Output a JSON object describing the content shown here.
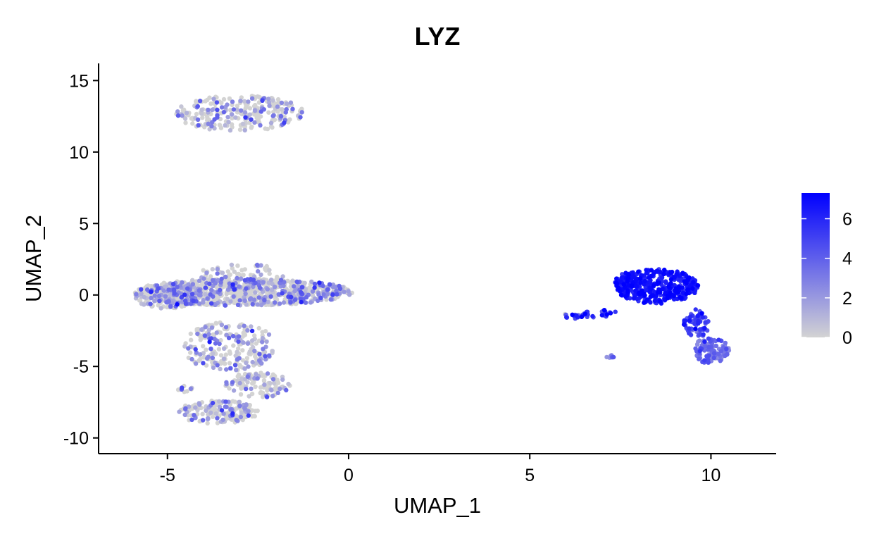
{
  "chart_data": {
    "type": "scatter",
    "title": "LYZ",
    "xlabel": "UMAP_1",
    "ylabel": "UMAP_2",
    "xlim": [
      -6.9,
      11.8
    ],
    "ylim": [
      -11.1,
      16.2
    ],
    "xticks": [
      -5,
      0,
      5,
      10
    ],
    "xtick_labels": [
      "-5",
      "0",
      "5",
      "10"
    ],
    "yticks": [
      -10,
      -5,
      0,
      5,
      10,
      15
    ],
    "ytick_labels": [
      "-10",
      "-5",
      "0",
      "5",
      "10",
      "15"
    ],
    "grid": false,
    "legend": {
      "position": "right",
      "type": "colorbar",
      "min": 0,
      "max": 7.3,
      "ticks": [
        0,
        2,
        4,
        6
      ],
      "tick_labels": [
        "0",
        "2",
        "4",
        "6"
      ],
      "low_color": "#d3d3d3",
      "high_color": "#0000ff"
    },
    "clusters": [
      {
        "name": "top-cluster",
        "shape": "ellipse",
        "cx": -3.0,
        "cy": 12.7,
        "rx": 1.8,
        "ry": 1.25,
        "count": 260,
        "expr_mean": 1.0,
        "expr_sd": 1.0
      },
      {
        "name": "mid-band",
        "shape": "ellipse",
        "cx": -2.9,
        "cy": 0.2,
        "rx": 3.0,
        "ry": 0.95,
        "count": 820,
        "expr_mean": 1.1,
        "expr_sd": 1.0
      },
      {
        "name": "mid-band-left",
        "shape": "ellipse",
        "cx": -5.0,
        "cy": -0.1,
        "rx": 0.9,
        "ry": 0.85,
        "count": 200,
        "expr_mean": 1.1,
        "expr_sd": 1.0
      },
      {
        "name": "mid-band-top",
        "shape": "ellipse",
        "cx": -3.0,
        "cy": 1.3,
        "rx": 1.2,
        "ry": 0.9,
        "count": 80,
        "expr_mean": 1.0,
        "expr_sd": 1.0
      },
      {
        "name": "stem",
        "shape": "ellipse",
        "cx": -3.3,
        "cy": -3.6,
        "rx": 1.3,
        "ry": 1.7,
        "count": 230,
        "expr_mean": 0.9,
        "expr_sd": 0.9
      },
      {
        "name": "lower-right-lobe",
        "shape": "ellipse",
        "cx": -2.5,
        "cy": -6.3,
        "rx": 0.9,
        "ry": 0.9,
        "count": 110,
        "expr_mean": 0.9,
        "expr_sd": 0.9
      },
      {
        "name": "bottom-lobe",
        "shape": "ellipse",
        "cx": -3.6,
        "cy": -8.2,
        "rx": 1.1,
        "ry": 0.85,
        "count": 170,
        "expr_mean": 0.9,
        "expr_sd": 0.9
      },
      {
        "name": "small-left-blob",
        "shape": "ellipse",
        "cx": -4.5,
        "cy": -6.5,
        "rx": 0.25,
        "ry": 0.3,
        "count": 10,
        "expr_mean": 1.5,
        "expr_sd": 0.8
      },
      {
        "name": "myeloid-main",
        "shape": "ellipse",
        "cx": 8.5,
        "cy": 0.6,
        "rx": 1.15,
        "ry": 1.2,
        "count": 360,
        "expr_mean": 6.4,
        "expr_sd": 0.7
      },
      {
        "name": "myeloid-main-left",
        "shape": "ellipse",
        "cx": 7.7,
        "cy": 0.8,
        "rx": 0.35,
        "ry": 0.75,
        "count": 60,
        "expr_mean": 6.6,
        "expr_sd": 0.6
      },
      {
        "name": "myeloid-tail",
        "shape": "ellipse",
        "cx": 9.6,
        "cy": -2.0,
        "rx": 0.35,
        "ry": 1.0,
        "count": 70,
        "expr_mean": 5.0,
        "expr_sd": 0.9
      },
      {
        "name": "myeloid-bottom",
        "shape": "ellipse",
        "cx": 10.0,
        "cy": -3.9,
        "rx": 0.5,
        "ry": 0.95,
        "count": 110,
        "expr_mean": 3.3,
        "expr_sd": 0.9
      },
      {
        "name": "streak",
        "shape": "line",
        "x1": 5.95,
        "y1": -1.45,
        "x2": 7.3,
        "y2": -1.3,
        "spread": 0.1,
        "count": 38,
        "expr_mean": 5.0,
        "expr_sd": 1.6
      },
      {
        "name": "tiny-blob",
        "shape": "ellipse",
        "cx": 7.2,
        "cy": -4.3,
        "rx": 0.15,
        "ry": 0.12,
        "count": 6,
        "expr_mean": 3.0,
        "expr_sd": 1.5
      }
    ]
  }
}
